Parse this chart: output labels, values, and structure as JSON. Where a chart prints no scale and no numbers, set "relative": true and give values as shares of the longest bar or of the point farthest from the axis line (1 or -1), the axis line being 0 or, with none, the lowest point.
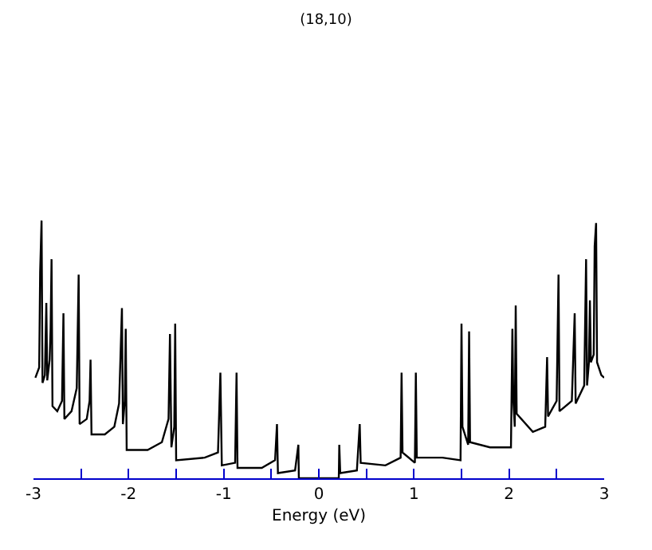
{
  "chart_data": {
    "type": "line",
    "title": "(18,10)",
    "xlabel": "Energy (eV)",
    "relative": true,
    "color": "#000000",
    "grid": false,
    "xlim": [
      -3,
      3
    ],
    "xticks": [
      -3,
      {
        "value": -2.5,
        "label": null
      },
      -2,
      {
        "value": -1.5,
        "label": null
      },
      -1,
      {
        "value": -0.5,
        "label": null
      },
      0,
      {
        "value": 0.5,
        "label": null
      },
      1,
      {
        "value": 1.5,
        "label": null
      },
      2,
      {
        "value": 2.5,
        "label": null
      },
      3
    ],
    "x": [
      -2.98,
      -2.94,
      -2.93,
      -2.915,
      -2.905,
      -2.88,
      -2.865,
      -2.855,
      -2.83,
      -2.82,
      -2.81,
      -2.8,
      -2.75,
      -2.7,
      -2.685,
      -2.675,
      -2.6,
      -2.545,
      -2.525,
      -2.515,
      -2.44,
      -2.41,
      -2.4,
      -2.39,
      -2.25,
      -2.15,
      -2.1,
      -2.07,
      -2.06,
      -2.04,
      -2.03,
      -2.02,
      -1.8,
      -1.65,
      -1.58,
      -1.565,
      -1.55,
      -1.52,
      -1.51,
      -1.5,
      -1.2,
      -1.06,
      -1.035,
      -1.02,
      -0.88,
      -0.865,
      -0.855,
      -0.6,
      -0.46,
      -0.44,
      -0.43,
      -0.25,
      -0.215,
      -0.21,
      0.21,
      0.215,
      0.225,
      0.4,
      0.43,
      0.44,
      0.7,
      0.86,
      0.87,
      0.88,
      1.01,
      1.02,
      1.03,
      1.3,
      1.49,
      1.5,
      1.51,
      1.57,
      1.58,
      1.59,
      1.8,
      2.02,
      2.035,
      2.045,
      2.06,
      2.07,
      2.08,
      2.25,
      2.38,
      2.4,
      2.41,
      2.5,
      2.52,
      2.53,
      2.66,
      2.69,
      2.7,
      2.79,
      2.81,
      2.82,
      2.84,
      2.85,
      2.86,
      2.89,
      2.9,
      2.915,
      2.925,
      2.97,
      3.0
    ],
    "values": [
      0.39,
      0.43,
      0.8,
      1.0,
      0.37,
      0.4,
      0.68,
      0.38,
      0.46,
      0.58,
      0.85,
      0.28,
      0.26,
      0.3,
      0.64,
      0.23,
      0.26,
      0.35,
      0.79,
      0.21,
      0.23,
      0.3,
      0.46,
      0.17,
      0.17,
      0.2,
      0.29,
      0.66,
      0.21,
      0.3,
      0.58,
      0.11,
      0.11,
      0.14,
      0.23,
      0.56,
      0.12,
      0.2,
      0.6,
      0.07,
      0.08,
      0.1,
      0.41,
      0.05,
      0.06,
      0.41,
      0.04,
      0.04,
      0.07,
      0.21,
      0.02,
      0.03,
      0.13,
      0,
      0,
      0.13,
      0.02,
      0.03,
      0.21,
      0.06,
      0.05,
      0.08,
      0.41,
      0.1,
      0.06,
      0.41,
      0.08,
      0.08,
      0.07,
      0.6,
      0.2,
      0.13,
      0.57,
      0.14,
      0.12,
      0.12,
      0.58,
      0.3,
      0.2,
      0.67,
      0.25,
      0.18,
      0.2,
      0.47,
      0.24,
      0.3,
      0.79,
      0.26,
      0.3,
      0.64,
      0.29,
      0.36,
      0.85,
      0.36,
      0.45,
      0.69,
      0.45,
      0.48,
      0.9,
      0.99,
      0.45,
      0.4,
      0.39
    ]
  }
}
